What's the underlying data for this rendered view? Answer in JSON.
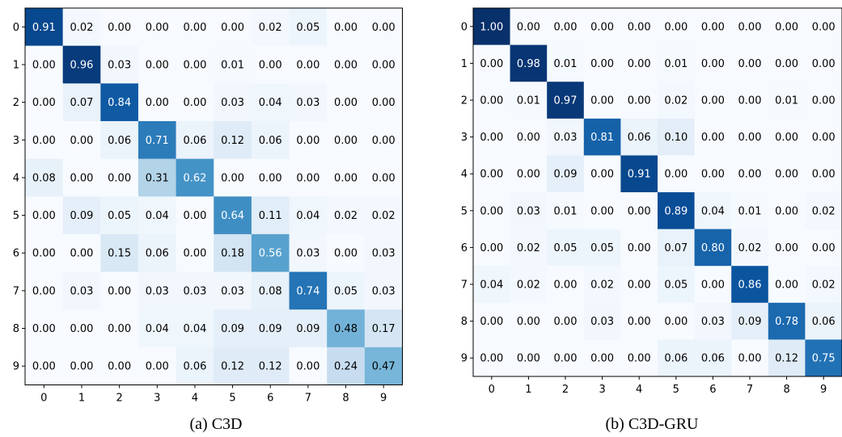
{
  "chart_data": [
    {
      "type": "heatmap",
      "caption": "(a) C3D",
      "x_categories": [
        "0",
        "1",
        "2",
        "3",
        "4",
        "5",
        "6",
        "7",
        "8",
        "9"
      ],
      "y_categories": [
        "0",
        "1",
        "2",
        "3",
        "4",
        "5",
        "6",
        "7",
        "8",
        "9"
      ],
      "values": [
        [
          0.91,
          0.02,
          0.0,
          0.0,
          0.0,
          0.0,
          0.02,
          0.05,
          0.0,
          0.0
        ],
        [
          0.0,
          0.96,
          0.03,
          0.0,
          0.0,
          0.01,
          0.0,
          0.0,
          0.0,
          0.0
        ],
        [
          0.0,
          0.07,
          0.84,
          0.0,
          0.0,
          0.03,
          0.04,
          0.03,
          0.0,
          0.0
        ],
        [
          0.0,
          0.0,
          0.06,
          0.71,
          0.06,
          0.12,
          0.06,
          0.0,
          0.0,
          0.0
        ],
        [
          0.08,
          0.0,
          0.0,
          0.31,
          0.62,
          0.0,
          0.0,
          0.0,
          0.0,
          0.0
        ],
        [
          0.0,
          0.09,
          0.05,
          0.04,
          0.0,
          0.64,
          0.11,
          0.04,
          0.02,
          0.02
        ],
        [
          0.0,
          0.0,
          0.15,
          0.06,
          0.0,
          0.18,
          0.56,
          0.03,
          0.0,
          0.03
        ],
        [
          0.0,
          0.03,
          0.0,
          0.03,
          0.03,
          0.03,
          0.08,
          0.74,
          0.05,
          0.03
        ],
        [
          0.0,
          0.0,
          0.0,
          0.04,
          0.04,
          0.09,
          0.09,
          0.09,
          0.48,
          0.17
        ],
        [
          0.0,
          0.0,
          0.0,
          0.0,
          0.06,
          0.12,
          0.12,
          0.0,
          0.24,
          0.47
        ]
      ],
      "colormap": "Blues",
      "value_range": [
        0,
        1
      ]
    },
    {
      "type": "heatmap",
      "caption": "(b) C3D-GRU",
      "x_categories": [
        "0",
        "1",
        "2",
        "3",
        "4",
        "5",
        "6",
        "7",
        "8",
        "9"
      ],
      "y_categories": [
        "0",
        "1",
        "2",
        "3",
        "4",
        "5",
        "6",
        "7",
        "8",
        "9"
      ],
      "values": [
        [
          1.0,
          0.0,
          0.0,
          0.0,
          0.0,
          0.0,
          0.0,
          0.0,
          0.0,
          0.0
        ],
        [
          0.0,
          0.98,
          0.01,
          0.0,
          0.0,
          0.01,
          0.0,
          0.0,
          0.0,
          0.0
        ],
        [
          0.0,
          0.01,
          0.97,
          0.0,
          0.0,
          0.02,
          0.0,
          0.0,
          0.01,
          0.0
        ],
        [
          0.0,
          0.0,
          0.03,
          0.81,
          0.06,
          0.1,
          0.0,
          0.0,
          0.0,
          0.0
        ],
        [
          0.0,
          0.0,
          0.09,
          0.0,
          0.91,
          0.0,
          0.0,
          0.0,
          0.0,
          0.0
        ],
        [
          0.0,
          0.03,
          0.01,
          0.0,
          0.0,
          0.89,
          0.04,
          0.01,
          0.0,
          0.02
        ],
        [
          0.0,
          0.02,
          0.05,
          0.05,
          0.0,
          0.07,
          0.8,
          0.02,
          0.0,
          0.0
        ],
        [
          0.04,
          0.02,
          0.0,
          0.02,
          0.0,
          0.05,
          0.0,
          0.86,
          0.0,
          0.02
        ],
        [
          0.0,
          0.0,
          0.0,
          0.03,
          0.0,
          0.0,
          0.03,
          0.09,
          0.78,
          0.06
        ],
        [
          0.0,
          0.0,
          0.0,
          0.0,
          0.0,
          0.06,
          0.06,
          0.0,
          0.12,
          0.75
        ]
      ],
      "colormap": "Blues",
      "value_range": [
        0,
        1
      ],
      "note_clipped_right": true
    }
  ]
}
